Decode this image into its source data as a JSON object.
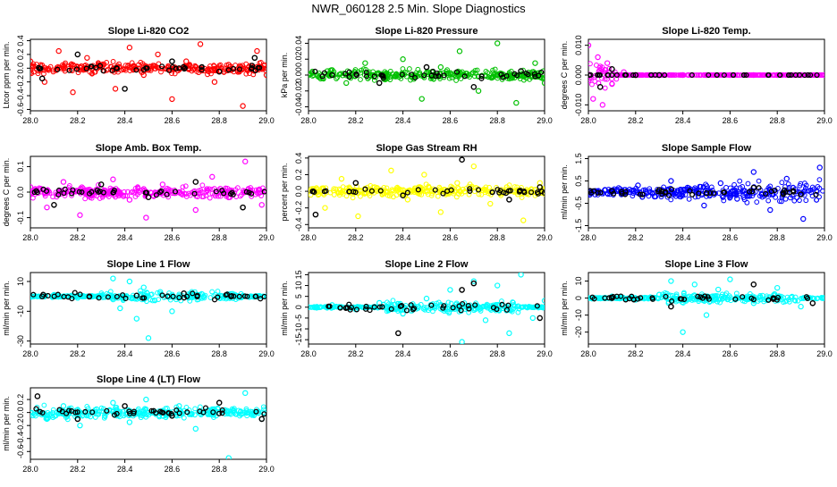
{
  "figure": {
    "title": "NWR_060128  2.5 Min. Slope Diagnostics"
  },
  "chart_data": [
    {
      "type": "scatter",
      "title": "Slope Li-820 CO2",
      "ylabel": "Ltcor ppm per min.",
      "xlim": [
        28.0,
        29.0
      ],
      "ylim": [
        -0.62,
        0.42
      ],
      "xticks": [
        "28.0",
        "28.2",
        "28.4",
        "28.6",
        "28.8",
        "29.0"
      ],
      "xtick_values": [
        28.0,
        28.2,
        28.4,
        28.6,
        28.8,
        29.0
      ],
      "yticks": [
        "-0.6",
        "-0.4",
        "-0.2",
        "0.0",
        "0.2",
        "0.4"
      ],
      "ytick_values": [
        -0.6,
        -0.4,
        -0.2,
        0.0,
        0.2,
        0.4
      ],
      "colors": {
        "primary": "#ff0000",
        "secondary": "#000000"
      },
      "series": [
        {
          "x": [
            28.0,
            28.06,
            28.12,
            28.18,
            28.24,
            28.3,
            28.36,
            28.42,
            28.48,
            28.54,
            28.6,
            28.66,
            28.72,
            28.78,
            28.84,
            28.9,
            28.96,
            29.0
          ],
          "y": [
            0.1,
            -0.2,
            0.25,
            -0.35,
            0.15,
            0.05,
            -0.3,
            0.3,
            -0.1,
            0.2,
            -0.45,
            0.1,
            0.35,
            -0.2,
            0.05,
            -0.55,
            0.25,
            -0.1
          ]
        },
        {
          "x": [
            28.05,
            28.2,
            28.4,
            28.6,
            28.8,
            28.95
          ],
          "y": [
            -0.15,
            0.2,
            -0.3,
            0.1,
            -0.05,
            0.15
          ]
        }
      ]
    },
    {
      "type": "scatter",
      "title": "Slope Li-820 Pressure",
      "ylabel": "kPa per min.",
      "xlim": [
        28.0,
        29.0
      ],
      "ylim": [
        -0.045,
        0.045
      ],
      "xticks": [
        "28.0",
        "28.2",
        "28.4",
        "28.6",
        "28.8",
        "29.0"
      ],
      "xtick_values": [
        28.0,
        28.2,
        28.4,
        28.6,
        28.8,
        29.0
      ],
      "yticks": [
        "-0.04",
        "-0.02",
        "0.00",
        "0.02",
        "0.04"
      ],
      "ytick_values": [
        -0.04,
        -0.02,
        0.0,
        0.02,
        0.04
      ],
      "colors": {
        "primary": "#00c000",
        "secondary": "#000000"
      },
      "series": [
        {
          "x": [
            28.0,
            28.08,
            28.16,
            28.24,
            28.32,
            28.4,
            28.48,
            28.56,
            28.64,
            28.72,
            28.8,
            28.88,
            28.96,
            29.0
          ],
          "y": [
            0.0,
            0.005,
            -0.01,
            0.015,
            -0.005,
            0.02,
            -0.03,
            0.01,
            0.03,
            -0.02,
            0.04,
            -0.035,
            0.015,
            -0.01
          ]
        },
        {
          "x": [
            28.1,
            28.3,
            28.5,
            28.7,
            28.9
          ],
          "y": [
            0.0,
            -0.01,
            0.01,
            -0.015,
            0.005
          ]
        }
      ]
    },
    {
      "type": "scatter",
      "title": "Slope Li-820 Temp.",
      "ylabel": "degrees C per min.",
      "xlim": [
        28.0,
        29.0
      ],
      "ylim": [
        -0.012,
        0.012
      ],
      "xticks": [
        "28.0",
        "28.2",
        "28.4",
        "28.6",
        "28.8",
        "29.0"
      ],
      "xtick_values": [
        28.0,
        28.2,
        28.4,
        28.6,
        28.8,
        29.0
      ],
      "yticks": [
        "-0.010",
        "0.000",
        "0.010"
      ],
      "ytick_values": [
        -0.01,
        0.0,
        0.01
      ],
      "colors": {
        "primary": "#ff00ff",
        "secondary": "#000000"
      },
      "series": [
        {
          "x": [
            28.0,
            28.02,
            28.04,
            28.06,
            28.08,
            28.1,
            28.15,
            28.2,
            28.3,
            28.4,
            28.5,
            28.6,
            28.7,
            28.8,
            28.9,
            29.0
          ],
          "y": [
            0.01,
            -0.008,
            0.006,
            -0.01,
            0.004,
            -0.003,
            0.001,
            0.0,
            0.0,
            0.0,
            0.0,
            0.0,
            0.0,
            0.0,
            0.0,
            0.0
          ]
        },
        {
          "x": [
            28.05,
            28.1,
            28.2,
            28.3
          ],
          "y": [
            -0.004,
            0.002,
            0.0,
            0.0
          ]
        }
      ]
    },
    {
      "type": "scatter",
      "title": "Slope Amb. Box Temp.",
      "ylabel": "degrees C per min.",
      "xlim": [
        28.0,
        29.0
      ],
      "ylim": [
        -0.14,
        0.14
      ],
      "xticks": [
        "28.0",
        "28.2",
        "28.4",
        "28.6",
        "28.8",
        "29.0"
      ],
      "xtick_values": [
        28.0,
        28.2,
        28.4,
        28.6,
        28.8,
        29.0
      ],
      "yticks": [
        "-0.1",
        "0.0",
        "0.1"
      ],
      "ytick_values": [
        -0.1,
        0.0,
        0.1
      ],
      "colors": {
        "primary": "#ff00ff",
        "secondary": "#000000"
      },
      "series": [
        {
          "x": [
            28.0,
            28.07,
            28.14,
            28.21,
            28.28,
            28.35,
            28.42,
            28.49,
            28.56,
            28.63,
            28.7,
            28.77,
            28.84,
            28.91,
            28.98
          ],
          "y": [
            0.02,
            -0.06,
            0.04,
            -0.09,
            0.01,
            0.05,
            -0.03,
            -0.1,
            0.03,
            0.0,
            -0.07,
            0.06,
            -0.02,
            0.12,
            -0.05
          ]
        },
        {
          "x": [
            28.1,
            28.3,
            28.5,
            28.7,
            28.9
          ],
          "y": [
            -0.05,
            0.03,
            -0.02,
            0.04,
            -0.06
          ]
        }
      ]
    },
    {
      "type": "scatter",
      "title": "Slope Gas Stream RH",
      "ylabel": "percent per min.",
      "xlim": [
        28.0,
        29.0
      ],
      "ylim": [
        -0.44,
        0.42
      ],
      "xticks": [
        "28.0",
        "28.2",
        "28.4",
        "28.6",
        "28.8",
        "29.0"
      ],
      "xtick_values": [
        28.0,
        28.2,
        28.4,
        28.6,
        28.8,
        29.0
      ],
      "yticks": [
        "-0.4",
        "-0.2",
        "0.0",
        "0.2",
        "0.4"
      ],
      "ytick_values": [
        -0.4,
        -0.2,
        0.0,
        0.2,
        0.4
      ],
      "colors": {
        "primary": "#ffff00",
        "secondary": "#000000"
      },
      "series": [
        {
          "x": [
            28.0,
            28.07,
            28.14,
            28.21,
            28.28,
            28.35,
            28.42,
            28.49,
            28.56,
            28.63,
            28.7,
            28.77,
            28.84,
            28.91,
            28.98
          ],
          "y": [
            0.0,
            -0.2,
            0.15,
            -0.3,
            0.05,
            0.25,
            -0.1,
            0.2,
            -0.25,
            0.1,
            0.3,
            -0.15,
            0.05,
            -0.35,
            0.1
          ]
        },
        {
          "x": [
            28.03,
            28.2,
            28.4,
            28.65,
            28.85,
            28.98
          ],
          "y": [
            -0.28,
            0.1,
            -0.05,
            0.38,
            -0.1,
            0.05
          ]
        }
      ]
    },
    {
      "type": "scatter",
      "title": "Slope Sample Flow",
      "ylabel": "ml/min per min.",
      "xlim": [
        28.0,
        29.0
      ],
      "ylim": [
        -1.6,
        1.6
      ],
      "xticks": [
        "28.0",
        "28.2",
        "28.4",
        "28.6",
        "28.8",
        "29.0"
      ],
      "xtick_values": [
        28.0,
        28.2,
        28.4,
        28.6,
        28.8,
        29.0
      ],
      "yticks": [
        "-1.5",
        "-0.5",
        "0.5",
        "1.5"
      ],
      "ytick_values": [
        -1.5,
        -0.5,
        0.5,
        1.5
      ],
      "colors": {
        "primary": "#0000ff",
        "secondary": "#000000"
      },
      "series": [
        {
          "x": [
            28.0,
            28.07,
            28.14,
            28.21,
            28.28,
            28.35,
            28.42,
            28.49,
            28.56,
            28.63,
            28.7,
            28.77,
            28.84,
            28.91,
            28.98
          ],
          "y": [
            0.0,
            0.1,
            -0.1,
            0.3,
            -0.2,
            0.5,
            0.2,
            -0.6,
            0.4,
            -0.3,
            0.9,
            -0.8,
            0.6,
            -1.2,
            1.1
          ]
        },
        {
          "x": [
            28.1,
            28.3,
            28.5,
            28.7,
            28.9
          ],
          "y": [
            0.05,
            0.1,
            -0.05,
            0.2,
            -0.1
          ]
        }
      ]
    },
    {
      "type": "scatter",
      "title": "Slope Line 1 Flow",
      "ylabel": "ml/min per min.",
      "xlim": [
        28.0,
        29.0
      ],
      "ylim": [
        -32,
        16
      ],
      "xticks": [
        "28.0",
        "28.2",
        "28.4",
        "28.6",
        "28.8",
        "29.0"
      ],
      "xtick_values": [
        28.0,
        28.2,
        28.4,
        28.6,
        28.8,
        29.0
      ],
      "yticks": [
        "-30",
        "-10",
        "10"
      ],
      "ytick_values": [
        -30,
        -10,
        10
      ],
      "colors": {
        "primary": "#00ffff",
        "secondary": "#000000"
      },
      "series": [
        {
          "x": [
            28.0,
            28.1,
            28.2,
            28.3,
            28.35,
            28.38,
            28.42,
            28.45,
            28.48,
            28.5,
            28.55,
            28.6,
            28.7,
            28.8,
            28.9,
            29.0
          ],
          "y": [
            0.0,
            1.0,
            -1.0,
            0.5,
            12.0,
            -8.0,
            10.0,
            -15.0,
            6.0,
            -28.0,
            3.0,
            -10.0,
            1.0,
            -1.0,
            0.5,
            0.0
          ]
        },
        {
          "x": [
            28.05,
            28.25,
            28.45,
            28.65,
            28.85
          ],
          "y": [
            0.0,
            0.0,
            0.5,
            2.0,
            0.0
          ]
        }
      ]
    },
    {
      "type": "scatter",
      "title": "Slope Line 2 Flow",
      "ylabel": "ml/min per min.",
      "xlim": [
        28.0,
        29.0
      ],
      "ylim": [
        -17,
        16
      ],
      "xticks": [
        "28.0",
        "28.2",
        "28.4",
        "28.6",
        "28.8",
        "29.0"
      ],
      "xtick_values": [
        28.0,
        28.2,
        28.4,
        28.6,
        28.8,
        29.0
      ],
      "yticks": [
        "-15",
        "-10",
        "-5",
        "0",
        "5",
        "10",
        "15"
      ],
      "ytick_values": [
        -15,
        -10,
        -5,
        0,
        5,
        10,
        15
      ],
      "colors": {
        "primary": "#00ffff",
        "secondary": "#000000"
      },
      "series": [
        {
          "x": [
            28.0,
            28.1,
            28.2,
            28.3,
            28.4,
            28.5,
            28.6,
            28.65,
            28.7,
            28.75,
            28.8,
            28.85,
            28.9,
            28.95,
            29.0
          ],
          "y": [
            0.0,
            1.0,
            -1.0,
            2.0,
            -3.0,
            4.0,
            8.0,
            -16.0,
            12.0,
            -6.0,
            10.0,
            -12.0,
            15.0,
            -5.0,
            3.0
          ]
        },
        {
          "x": [
            28.38,
            28.65,
            28.7,
            28.98
          ],
          "y": [
            -12.0,
            8.0,
            11.0,
            -5.0
          ]
        }
      ]
    },
    {
      "type": "scatter",
      "title": "Slope Line 3 Flow",
      "ylabel": "ml/min per min.",
      "xlim": [
        28.0,
        29.0
      ],
      "ylim": [
        -27,
        15
      ],
      "xticks": [
        "28.0",
        "28.2",
        "28.4",
        "28.6",
        "28.8",
        "29.0"
      ],
      "xtick_values": [
        28.0,
        28.2,
        28.4,
        28.6,
        28.8,
        29.0
      ],
      "yticks": [
        "-20",
        "-10",
        "0",
        "10"
      ],
      "ytick_values": [
        -20,
        -10,
        0,
        10
      ],
      "colors": {
        "primary": "#00ffff",
        "secondary": "#000000"
      },
      "series": [
        {
          "x": [
            28.0,
            28.1,
            28.2,
            28.3,
            28.35,
            28.4,
            28.45,
            28.5,
            28.55,
            28.6,
            28.7,
            28.8,
            28.9,
            29.0
          ],
          "y": [
            0.0,
            1.0,
            -1.0,
            2.0,
            10.0,
            -20.0,
            8.0,
            -10.0,
            5.0,
            11.0,
            -3.0,
            6.0,
            -5.0,
            0.0
          ]
        },
        {
          "x": [
            28.1,
            28.35,
            28.7,
            28.95
          ],
          "y": [
            0.0,
            -5.0,
            8.0,
            -3.0
          ]
        }
      ]
    },
    {
      "type": "scatter",
      "title": "Slope Line 4 (LT) Flow",
      "ylabel": "ml/min per min.",
      "xlim": [
        28.0,
        29.0
      ],
      "ylim": [
        -0.72,
        0.38
      ],
      "xticks": [
        "28.0",
        "28.2",
        "28.4",
        "28.6",
        "28.8",
        "29.0"
      ],
      "xtick_values": [
        28.0,
        28.2,
        28.4,
        28.6,
        28.8,
        29.0
      ],
      "yticks": [
        "-0.6",
        "-0.4",
        "-0.2",
        "0.0",
        "0.2"
      ],
      "ytick_values": [
        -0.6,
        -0.4,
        -0.2,
        0.0,
        0.2
      ],
      "colors": {
        "primary": "#00ffff",
        "secondary": "#000000"
      },
      "series": [
        {
          "x": [
            28.0,
            28.07,
            28.14,
            28.21,
            28.28,
            28.35,
            28.42,
            28.49,
            28.56,
            28.63,
            28.7,
            28.77,
            28.84,
            28.91,
            28.98
          ],
          "y": [
            0.0,
            -0.1,
            0.1,
            -0.2,
            0.05,
            0.15,
            -0.15,
            0.2,
            -0.05,
            0.1,
            -0.25,
            0.05,
            -0.7,
            0.3,
            -0.1
          ]
        },
        {
          "x": [
            28.03,
            28.2,
            28.4,
            28.6,
            28.8,
            28.98
          ],
          "y": [
            0.25,
            -0.1,
            0.1,
            -0.05,
            0.15,
            -0.1
          ]
        }
      ]
    }
  ]
}
